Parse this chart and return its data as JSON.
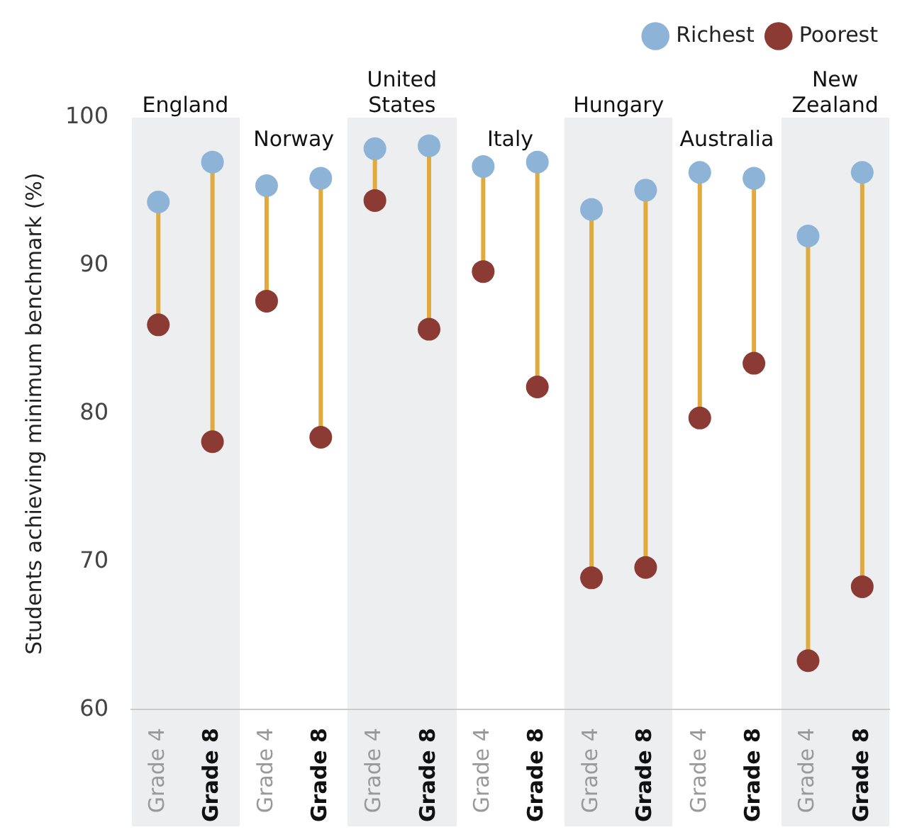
{
  "chart_data": {
    "type": "scatter",
    "ylabel": "Students achieving minimum benchmark (%)",
    "categories": [
      "Grade 4",
      "Grade 8",
      "Grade 4",
      "Grade 8",
      "Grade 4",
      "Grade 8",
      "Grade 4",
      "Grade 8",
      "Grade 4",
      "Grade 8",
      "Grade 4",
      "Grade 8",
      "Grade 4",
      "Grade 8"
    ],
    "series": [
      {
        "name": "Richest",
        "color": "#8db3d6",
        "values": [
          94.3,
          97.0,
          95.4,
          95.9,
          97.9,
          98.1,
          96.7,
          97.0,
          93.8,
          95.1,
          96.3,
          95.9,
          92.0,
          96.3
        ]
      },
      {
        "name": "Poorest",
        "color": "#8b3a34",
        "values": [
          86.0,
          78.1,
          87.6,
          78.4,
          94.4,
          85.7,
          89.6,
          81.8,
          68.9,
          69.6,
          79.7,
          83.4,
          63.3,
          68.3
        ]
      }
    ],
    "annotations": [
      "England",
      "Norway",
      "United States",
      "Italy",
      "Hungary",
      "Australia",
      "New Zealand"
    ],
    "ylim": [
      60,
      100
    ],
    "yticks": [
      60,
      70,
      80,
      90,
      100
    ],
    "grid": false,
    "legend": "top right",
    "marker": "circle"
  }
}
